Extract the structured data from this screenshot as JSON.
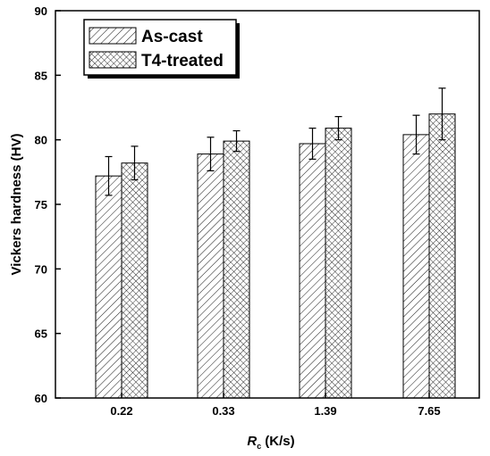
{
  "chart_data": {
    "type": "bar",
    "categories": [
      "0.22",
      "0.33",
      "1.39",
      "7.65"
    ],
    "series": [
      {
        "name": "As-cast",
        "values": [
          77.2,
          78.9,
          79.7,
          80.4
        ],
        "errors": [
          1.5,
          1.3,
          1.2,
          1.5
        ],
        "pattern": "diagonal-hatch"
      },
      {
        "name": "T4-treated",
        "values": [
          78.2,
          79.9,
          80.9,
          82.0
        ],
        "errors": [
          1.3,
          0.8,
          0.9,
          2.0
        ],
        "pattern": "crosshatch"
      }
    ],
    "ylim": [
      60,
      90
    ],
    "yticks": [
      "60",
      "65",
      "70",
      "75",
      "80",
      "85",
      "90"
    ],
    "ylabel": "Vickers hardness (HV)",
    "xlabel_main": "R",
    "xlabel_sub": "c",
    "xlabel_unit": "(K/s)",
    "legend_position": "top-left",
    "grid": false
  }
}
